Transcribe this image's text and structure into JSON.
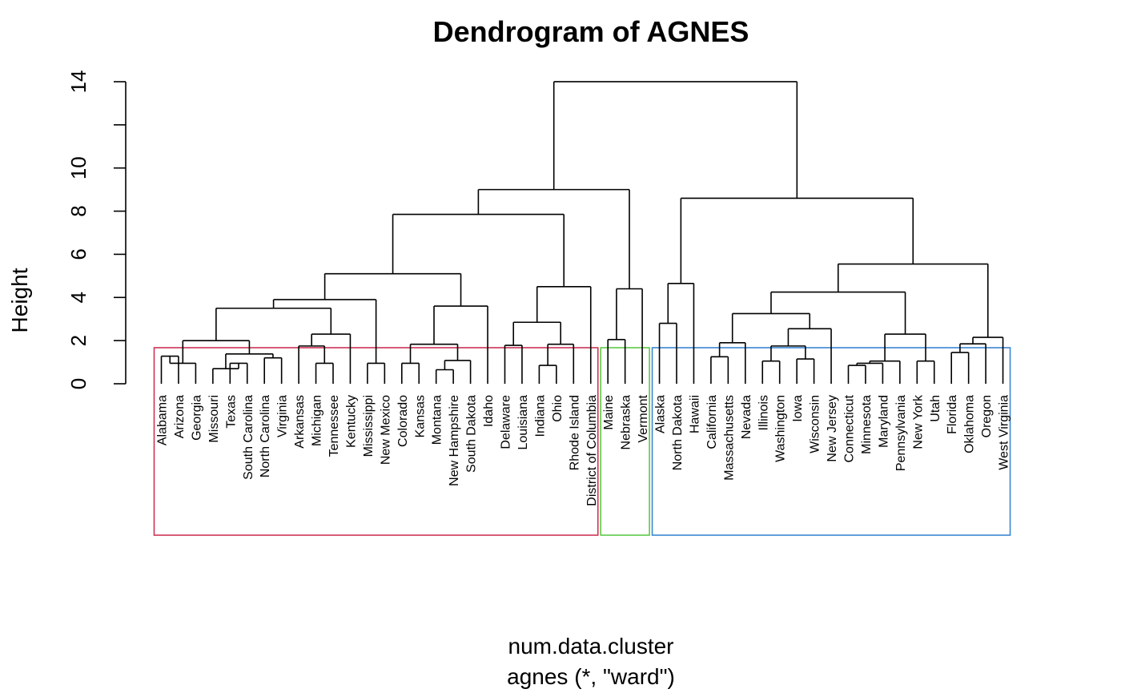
{
  "chart_data": {
    "type": "dendrogram",
    "title": "Dendrogram of AGNES",
    "ylabel": "Height",
    "xlabel": "num.data.cluster",
    "sublabel": "agnes (*, \"ward\")",
    "yticks": [
      0,
      2,
      4,
      6,
      8,
      10,
      14
    ],
    "yminor_ticks": [
      12
    ],
    "ylim": [
      0,
      14
    ],
    "leaves": [
      "Alabama",
      "Arizona",
      "Georgia",
      "Missouri",
      "Texas",
      "South Carolina",
      "North Carolina",
      "Virginia",
      "Arkansas",
      "Michigan",
      "Tennessee",
      "Kentucky",
      "Mississippi",
      "New Mexico",
      "Colorado",
      "Kansas",
      "Montana",
      "New Hampshire",
      "South Dakota",
      "Idaho",
      "Delaware",
      "Louisiana",
      "Indiana",
      "Ohio",
      "Rhode Island",
      "District of Columbia",
      "Maine",
      "Nebraska",
      "Vermont",
      "Alaska",
      "North Dakota",
      "Hawaii",
      "California",
      "Massachusetts",
      "Nevada",
      "Illinois",
      "Washington",
      "Iowa",
      "Wisconsin",
      "New Jersey",
      "Connecticut",
      "Minnesota",
      "Maryland",
      "Pennsylvania",
      "New York",
      "Utah",
      "Florida",
      "Oklahoma",
      "Oregon",
      "West Virginia"
    ],
    "merges": [
      [
        "Alabama",
        "Arizona",
        1.28
      ],
      [
        "Georgia",
        "Alabama+Arizona",
        0.95
      ],
      [
        "Texas",
        "South Carolina",
        0.95
      ],
      [
        "Missouri",
        "Texas+South Carolina",
        0.7
      ],
      [
        "North Carolina",
        "Virginia",
        1.2
      ],
      [
        "Missouri+Texas+South Carolina",
        "North Carolina+Virginia",
        1.38
      ],
      [
        "Alabama+Arizona+Georgia",
        "Missouri+Texas+South Carolina+North Carolina+Virginia",
        2.0
      ],
      [
        "Michigan",
        "Tennessee",
        0.95
      ],
      [
        "Arkansas",
        "Michigan+Tennessee",
        1.75
      ],
      [
        "Arkansas+Michigan+Tennessee",
        "Kentucky",
        2.3
      ],
      [
        "Cluster A",
        "Arkansas+Michigan+Tennessee+Kentucky",
        3.5
      ],
      [
        "Mississippi",
        "New Mexico",
        0.95
      ],
      [
        "Cluster A+B",
        "Mississippi+New Mexico",
        3.9
      ],
      [
        "Colorado",
        "Kansas",
        0.95
      ],
      [
        "Montana",
        "New Hampshire",
        0.65
      ],
      [
        "Montana+New Hampshire",
        "South Dakota",
        1.08
      ],
      [
        "Colorado+Kansas",
        "Montana+New Hampshire+South Dakota",
        1.83
      ],
      [
        "Colorado group",
        "Idaho",
        3.6
      ],
      [
        "West group",
        "Colorado+Idaho group",
        5.1
      ],
      [
        "Delaware",
        "Louisiana",
        1.78
      ],
      [
        "Indiana",
        "Ohio",
        0.85
      ],
      [
        "Indiana+Ohio",
        "Rhode Island",
        1.83
      ],
      [
        "Delaware+Louisiana",
        "Indiana+Ohio+Rhode Island",
        2.85
      ],
      [
        "Delaware group",
        "District of Columbia",
        4.5
      ],
      [
        "Left group",
        "Delaware group",
        7.85
      ],
      [
        "Maine",
        "Nebraska",
        2.05
      ],
      [
        "Maine+Nebraska",
        "Vermont",
        4.4
      ],
      [
        "Left",
        "Maine+Nebraska+Vermont",
        9.0
      ],
      [
        "Alaska",
        "North Dakota",
        2.8
      ],
      [
        "Alaska+North Dakota",
        "Hawaii",
        4.65
      ],
      [
        "California",
        "Massachusetts",
        1.25
      ],
      [
        "California+Massachusetts",
        "Nevada",
        1.9
      ],
      [
        "Illinois",
        "Washington",
        1.05
      ],
      [
        "Iowa",
        "Wisconsin",
        1.15
      ],
      [
        "Illinois+Washington",
        "Iowa+Wisconsin",
        1.75
      ],
      [
        "Illinois group",
        "New Jersey",
        2.55
      ],
      [
        "California group",
        "Illinois group",
        3.25
      ],
      [
        "Connecticut",
        "Minnesota",
        0.85
      ],
      [
        "Connecticut+Minnesota",
        "Maryland",
        0.95
      ],
      [
        "Connecticut group",
        "Pennsylvania",
        1.05
      ],
      [
        "New York",
        "Utah",
        1.05
      ],
      [
        "Connecticut group",
        "New York+Utah",
        2.3
      ],
      [
        "California group",
        "Connecticut group",
        4.25
      ],
      [
        "Florida",
        "Oklahoma",
        1.45
      ],
      [
        "Florida+Oklahoma",
        "Oregon",
        1.85
      ],
      [
        "Florida group",
        "West Virginia",
        2.15
      ],
      [
        "Mid group",
        "Florida group",
        5.55
      ],
      [
        "Alaska group",
        "Mid group",
        8.6
      ],
      [
        "Left",
        "Right",
        14.0
      ]
    ],
    "cluster_boxes": [
      {
        "first": "Alabama",
        "last": "District of Columbia",
        "color": "#cc3355"
      },
      {
        "first": "Maine",
        "last": "Vermont",
        "color": "#5ec947"
      },
      {
        "first": "Alaska",
        "last": "West Virginia",
        "color": "#3a86d4"
      }
    ]
  }
}
